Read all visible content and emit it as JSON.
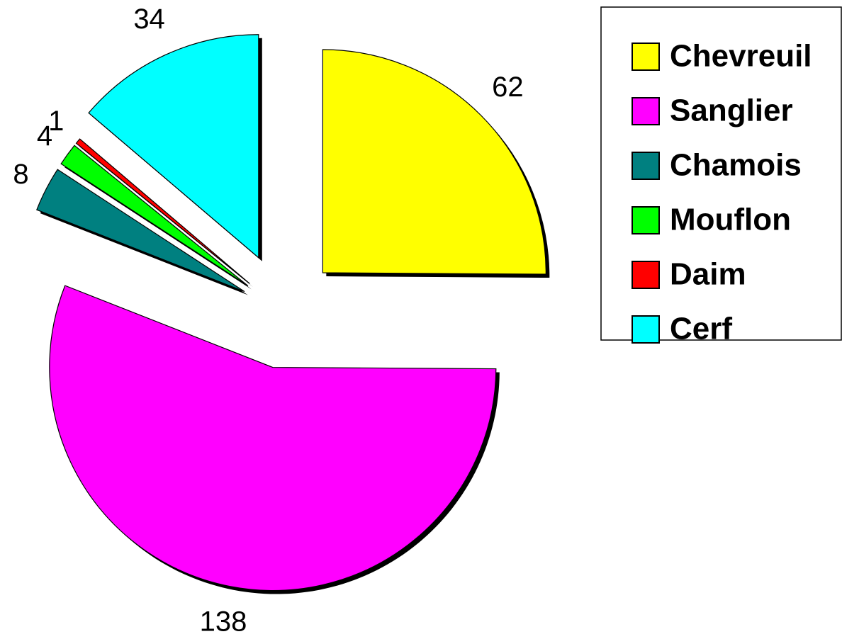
{
  "chart_data": {
    "type": "pie",
    "categories": [
      "Chevreuil",
      "Sanglier",
      "Chamois",
      "Mouflon",
      "Daim",
      "Cerf"
    ],
    "values": [
      62,
      138,
      8,
      4,
      1,
      34
    ],
    "colors": [
      "#ffff00",
      "#ff00ff",
      "#008080",
      "#00ff00",
      "#ff0000",
      "#00ffff"
    ],
    "legend": "right"
  }
}
